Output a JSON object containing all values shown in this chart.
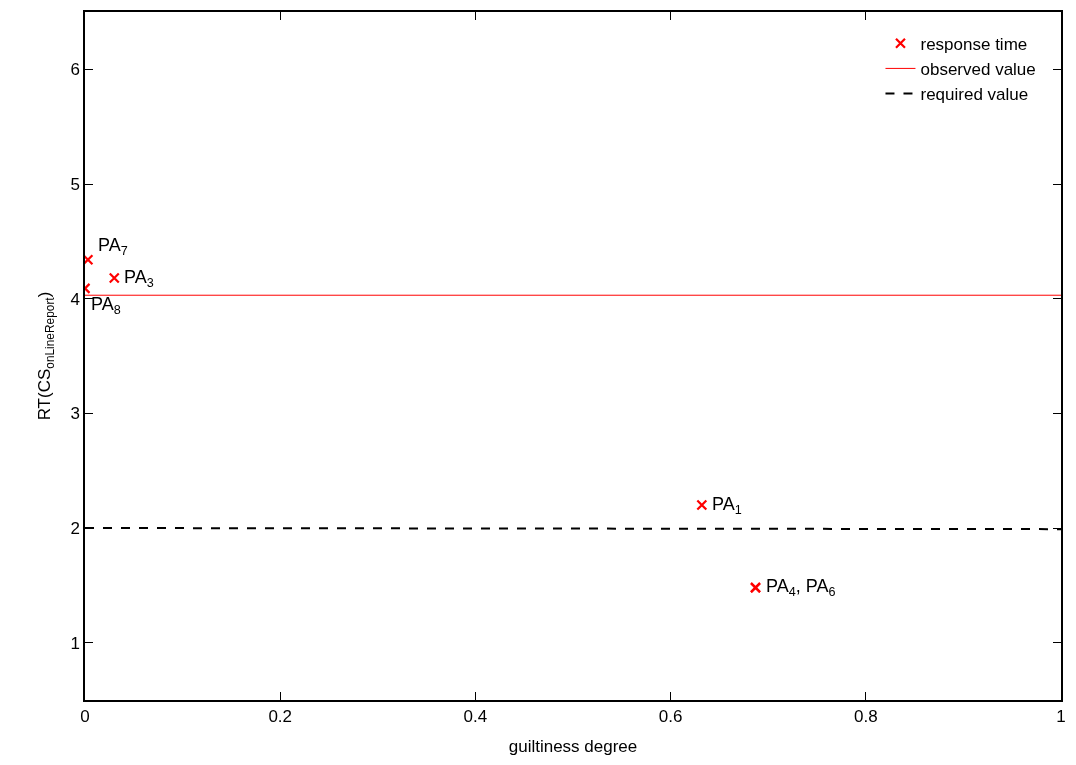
{
  "chart_data": {
    "type": "scatter",
    "xlabel": "guiltiness degree",
    "ylabel": "RT(CS$_{onLineReport}$)",
    "series": [
      {
        "name": "response time",
        "color": "#ff0000",
        "marker": "cross",
        "x": [
          0.632,
          0.03,
          0.687,
          0.687,
          0.003,
          0.0
        ],
        "values": [
          2.2,
          4.18,
          1.48,
          1.48,
          4.34,
          4.09
        ]
      },
      {
        "name": "observed value",
        "type": "line",
        "color": "#ff0000",
        "line_style": "solid",
        "x": [
          0,
          1
        ],
        "values": [
          4.03,
          4.03
        ]
      },
      {
        "name": "required value",
        "type": "line",
        "color": "#000000",
        "line_style": "dashed",
        "x": [
          0,
          1
        ],
        "values": [
          2.0,
          1.99
        ]
      }
    ],
    "annotations": [
      {
        "text": "PA$_{7}$",
        "x": 0.003,
        "y": 4.34
      },
      {
        "text": "PA$_{3}$",
        "x": 0.03,
        "y": 4.18
      },
      {
        "text": "PA$_{8}$",
        "x": 0.0,
        "y": 4.09
      },
      {
        "text": "PA$_{1}$",
        "x": 0.632,
        "y": 2.2
      },
      {
        "text": "PA$_{4}$, PA$_{6}$",
        "x": 0.687,
        "y": 1.48
      }
    ],
    "xlim": [
      0,
      1
    ],
    "xticks": [
      0,
      0.2,
      0.4,
      0.6,
      0.8,
      1
    ],
    "ylim": [
      0.5,
      6.5
    ],
    "yticks": [
      1,
      2,
      3,
      4,
      5,
      6
    ],
    "legend": "top right"
  }
}
